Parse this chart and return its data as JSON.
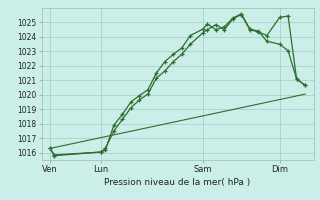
{
  "title": "",
  "xlabel": "Pression niveau de la mer( hPa )",
  "bg_color": "#cceee8",
  "grid_color": "#aad8d0",
  "line_color": "#2d6e2d",
  "ylim": [
    1015.5,
    1026.0
  ],
  "xlim": [
    -2,
    62
  ],
  "days": [
    "Ven",
    "Lun",
    "Sam",
    "Dim"
  ],
  "day_positions": [
    0,
    12,
    36,
    54
  ],
  "yticks": [
    1016,
    1017,
    1018,
    1019,
    1020,
    1021,
    1022,
    1023,
    1024,
    1025
  ],
  "line1_x": [
    0,
    1,
    12,
    13,
    15,
    17,
    19,
    21,
    23,
    25,
    27,
    29,
    31,
    33,
    36,
    37,
    39,
    41,
    43,
    45,
    47,
    49,
    51,
    54,
    56,
    58,
    60
  ],
  "line1_y": [
    1016.3,
    1015.8,
    1016.05,
    1016.3,
    1017.5,
    1018.3,
    1019.1,
    1019.65,
    1020.05,
    1021.15,
    1021.65,
    1022.3,
    1022.8,
    1023.5,
    1024.3,
    1024.5,
    1024.85,
    1024.5,
    1025.25,
    1025.55,
    1024.5,
    1024.35,
    1024.1,
    1025.35,
    1025.45,
    1021.1,
    1020.65
  ],
  "line2_x": [
    0,
    1,
    12,
    13,
    15,
    17,
    19,
    21,
    23,
    25,
    27,
    29,
    31,
    33,
    36,
    37,
    39,
    41,
    43,
    45,
    47,
    49,
    51,
    54,
    56,
    58,
    60
  ],
  "line2_y": [
    1016.3,
    1015.85,
    1016.05,
    1016.2,
    1017.9,
    1018.65,
    1019.5,
    1019.95,
    1020.35,
    1021.5,
    1022.3,
    1022.8,
    1023.25,
    1024.1,
    1024.55,
    1024.9,
    1024.5,
    1024.7,
    1025.3,
    1025.6,
    1024.55,
    1024.4,
    1023.7,
    1023.5,
    1023.05,
    1021.1,
    1020.65
  ],
  "line3_x": [
    0,
    60
  ],
  "line3_y": [
    1016.3,
    1020.05
  ]
}
